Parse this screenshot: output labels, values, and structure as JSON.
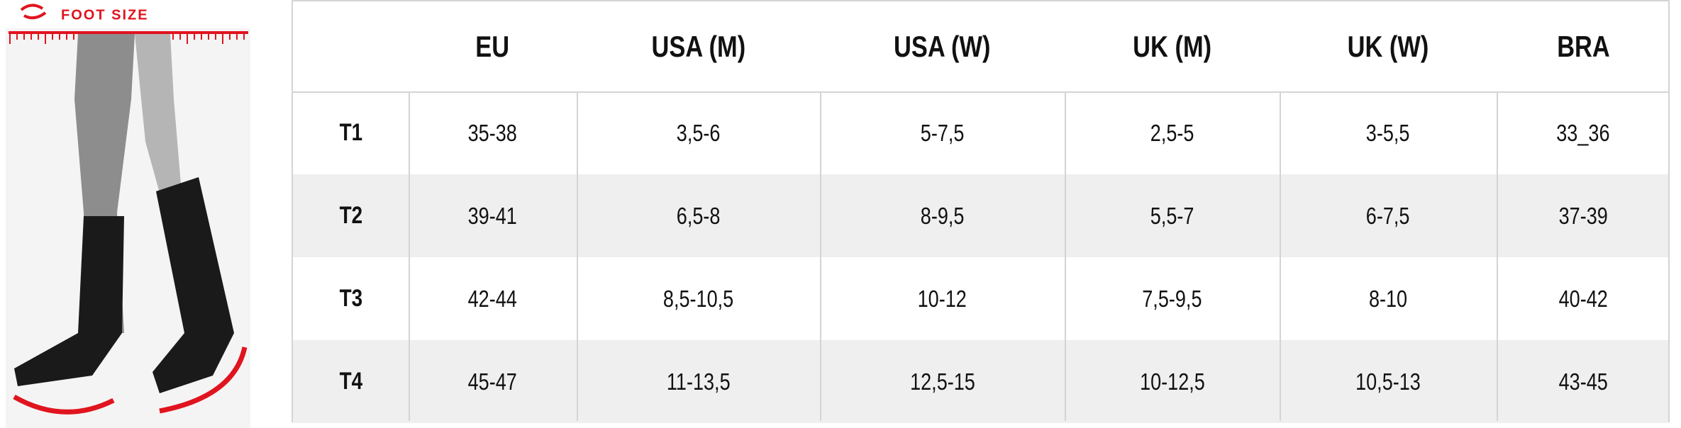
{
  "illustration": {
    "label": "FOOT SIZE"
  },
  "table": {
    "columns": [
      "EU",
      "USA (M)",
      "USA (W)",
      "UK (M)",
      "UK (W)",
      "BRA"
    ],
    "rows": [
      {
        "label": "T1",
        "values": [
          "35-38",
          "3,5-6",
          "5-7,5",
          "2,5-5",
          "3-5,5",
          "33_36"
        ]
      },
      {
        "label": "T2",
        "values": [
          "39-41",
          "6,5-8",
          "8-9,5",
          "5,5-7",
          "6-7,5",
          "37-39"
        ]
      },
      {
        "label": "T3",
        "values": [
          "42-44",
          "8,5-10,5",
          "10-12",
          "7,5-9,5",
          "8-10",
          "40-42"
        ]
      },
      {
        "label": "T4",
        "values": [
          "45-47",
          "11-13,5",
          "12,5-15",
          "10-12,5",
          "10,5-13",
          "43-45"
        ]
      }
    ]
  }
}
